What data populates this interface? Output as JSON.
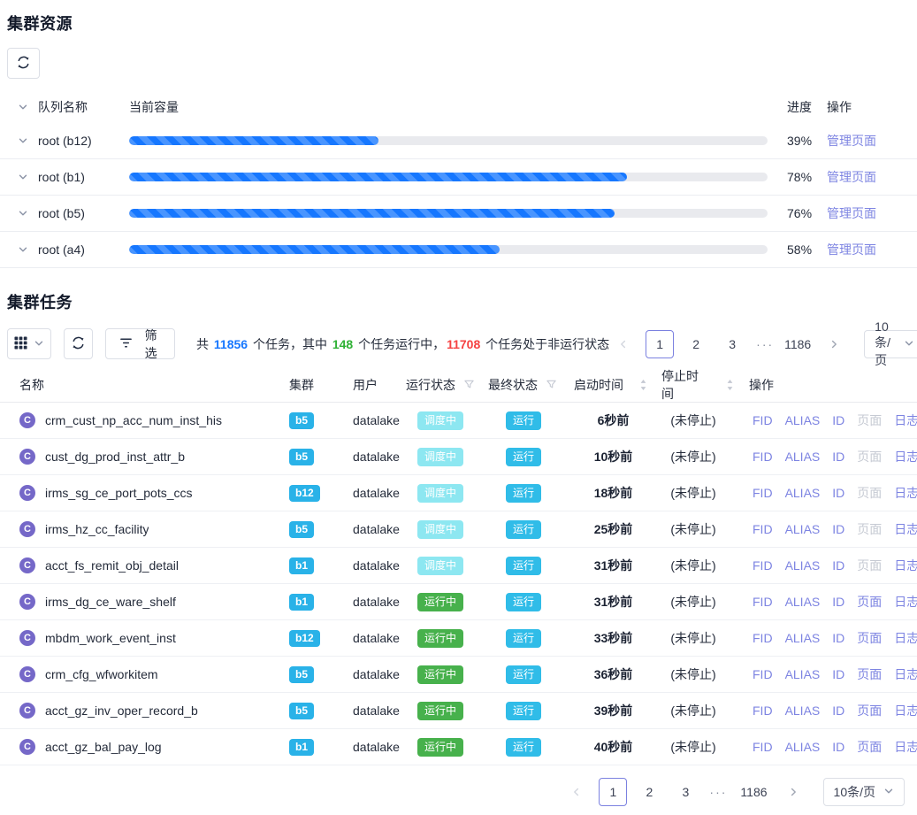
{
  "resources": {
    "title": "集群资源",
    "columns": {
      "queue": "队列名称",
      "capacity": "当前容量",
      "progress": "进度",
      "actions": "操作"
    },
    "manage_link": "管理页面",
    "rows": [
      {
        "queue": "root (b12)",
        "percent": 39,
        "percent_label": "39%"
      },
      {
        "queue": "root (b1)",
        "percent": 78,
        "percent_label": "78%"
      },
      {
        "queue": "root (b5)",
        "percent": 76,
        "percent_label": "76%"
      },
      {
        "queue": "root (a4)",
        "percent": 58,
        "percent_label": "58%"
      }
    ]
  },
  "tasks": {
    "title": "集群任务",
    "toolbar": {
      "filter_label": "筛选"
    },
    "summary": {
      "prefix": "共 ",
      "total": "11856",
      "mid1": " 个任务，其中 ",
      "running": "148",
      "mid2": " 个任务运行中，",
      "not_running": "11708",
      "suffix": " 个任务处于非运行状态"
    },
    "columns": {
      "name": "名称",
      "cluster": "集群",
      "user": "用户",
      "run_status": "运行状态",
      "final_status": "最终状态",
      "start_time": "启动时间",
      "stop_time": "停止时间",
      "actions": "操作"
    },
    "avatar_letter": "C",
    "ops": [
      {
        "key": "fid",
        "label": "FID"
      },
      {
        "key": "alias",
        "label": "ALIAS"
      },
      {
        "key": "id",
        "label": "ID"
      },
      {
        "key": "page",
        "label": "页面"
      },
      {
        "key": "log",
        "label": "日志"
      }
    ],
    "rows": [
      {
        "name": "crm_cust_np_acc_num_inst_his",
        "cluster": "b5",
        "user": "datalake",
        "run_status": "调度中",
        "run_type": "scheduling",
        "final_status": "运行",
        "start_time": "6秒前",
        "stop_time": "(未停止)",
        "page_enabled": false
      },
      {
        "name": "cust_dg_prod_inst_attr_b",
        "cluster": "b5",
        "user": "datalake",
        "run_status": "调度中",
        "run_type": "scheduling",
        "final_status": "运行",
        "start_time": "10秒前",
        "stop_time": "(未停止)",
        "page_enabled": false
      },
      {
        "name": "irms_sg_ce_port_pots_ccs",
        "cluster": "b12",
        "user": "datalake",
        "run_status": "调度中",
        "run_type": "scheduling",
        "final_status": "运行",
        "start_time": "18秒前",
        "stop_time": "(未停止)",
        "page_enabled": false
      },
      {
        "name": "irms_hz_cc_facility",
        "cluster": "b5",
        "user": "datalake",
        "run_status": "调度中",
        "run_type": "scheduling",
        "final_status": "运行",
        "start_time": "25秒前",
        "stop_time": "(未停止)",
        "page_enabled": false
      },
      {
        "name": "acct_fs_remit_obj_detail",
        "cluster": "b1",
        "user": "datalake",
        "run_status": "调度中",
        "run_type": "scheduling",
        "final_status": "运行",
        "start_time": "31秒前",
        "stop_time": "(未停止)",
        "page_enabled": false
      },
      {
        "name": "irms_dg_ce_ware_shelf",
        "cluster": "b1",
        "user": "datalake",
        "run_status": "运行中",
        "run_type": "running",
        "final_status": "运行",
        "start_time": "31秒前",
        "stop_time": "(未停止)",
        "page_enabled": true
      },
      {
        "name": "mbdm_work_event_inst",
        "cluster": "b12",
        "user": "datalake",
        "run_status": "运行中",
        "run_type": "running",
        "final_status": "运行",
        "start_time": "33秒前",
        "stop_time": "(未停止)",
        "page_enabled": true
      },
      {
        "name": "crm_cfg_wfworkitem",
        "cluster": "b5",
        "user": "datalake",
        "run_status": "运行中",
        "run_type": "running",
        "final_status": "运行",
        "start_time": "36秒前",
        "stop_time": "(未停止)",
        "page_enabled": true
      },
      {
        "name": "acct_gz_inv_oper_record_b",
        "cluster": "b5",
        "user": "datalake",
        "run_status": "运行中",
        "run_type": "running",
        "final_status": "运行",
        "start_time": "39秒前",
        "stop_time": "(未停止)",
        "page_enabled": true
      },
      {
        "name": "acct_gz_bal_pay_log",
        "cluster": "b1",
        "user": "datalake",
        "run_status": "运行中",
        "run_type": "running",
        "final_status": "运行",
        "start_time": "40秒前",
        "stop_time": "(未停止)",
        "page_enabled": true
      }
    ]
  },
  "pagination": {
    "pages": [
      "1",
      "2",
      "3"
    ],
    "active_page": "1",
    "ellipsis": "···",
    "last_page": "1186",
    "page_size": "10条/页"
  },
  "colors": {
    "link_purple": "#7d84e2",
    "progress_blue": "#1677ff",
    "summary_total_blue": "#1677ff",
    "summary_running_green": "#2fb135",
    "summary_not_running_red": "#f54242",
    "cluster_badge_cyan": "#29b2e8",
    "scheduling_badge_cyan": "#8de7f1",
    "running_badge_green": "#47b14c",
    "final_badge_cyan": "#30bce8",
    "avatar_purple": "#7568c8",
    "active_page_border": "#7b81e0"
  }
}
